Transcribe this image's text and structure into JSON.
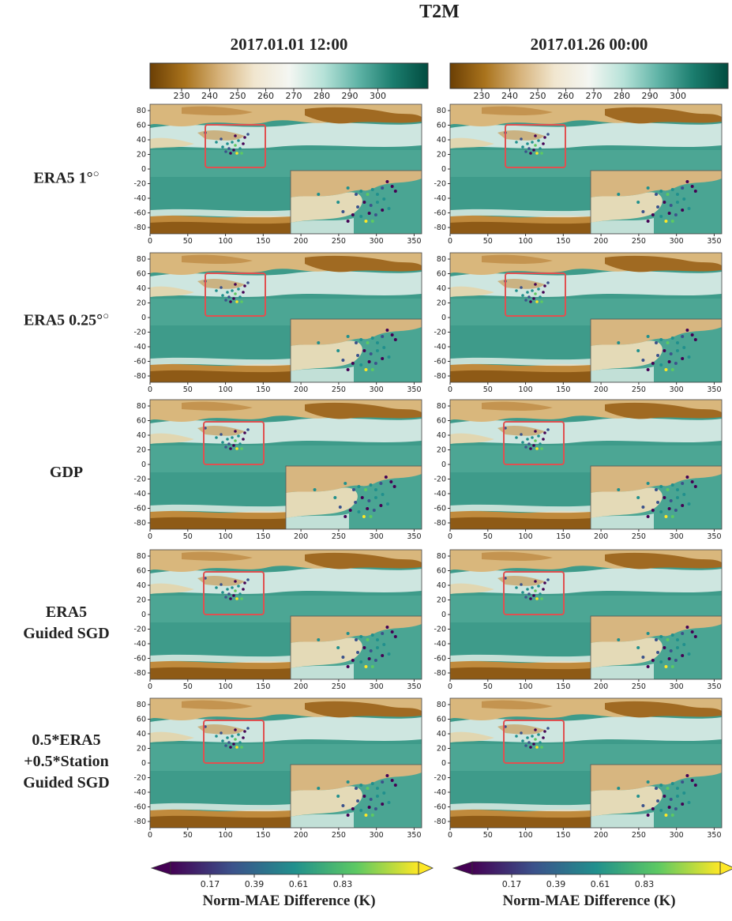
{
  "figure": {
    "title": "T2M",
    "columns": [
      "2017.01.01 12:00",
      "2017.01.26 00:00"
    ],
    "rows": [
      {
        "label": "ERA5 1°"
      },
      {
        "label": "ERA5 0.25°"
      },
      {
        "label": "GDP"
      },
      {
        "label": "ERA5\nGuided SGD"
      },
      {
        "label": "0.5*ERA5\n+0.5*Station\nGuided SGD"
      }
    ],
    "top_colorbar": {
      "ticks": [
        "230",
        "240",
        "250",
        "260",
        "270",
        "280",
        "290",
        "300"
      ],
      "colors": [
        "#6b3f05",
        "#a9731c",
        "#d6b27a",
        "#f1e6cf",
        "#f4f6f2",
        "#b6e2d8",
        "#5fb3a6",
        "#1b7d6e",
        "#024c40"
      ]
    },
    "bottom_colorbar": {
      "ticks": [
        "0.17",
        "0.39",
        "0.61",
        "0.83"
      ],
      "label": "Norm-MAE Difference (K)",
      "colors": [
        "#440154",
        "#3b528b",
        "#21908d",
        "#5dc963",
        "#fde725"
      ]
    },
    "map_axes": {
      "x_ticks": [
        "0",
        "50",
        "100",
        "150",
        "200",
        "250",
        "300",
        "350"
      ],
      "y_ticks": [
        "80",
        "60",
        "40",
        "20",
        "0",
        "-20",
        "-40",
        "-60",
        "-80"
      ]
    }
  }
}
